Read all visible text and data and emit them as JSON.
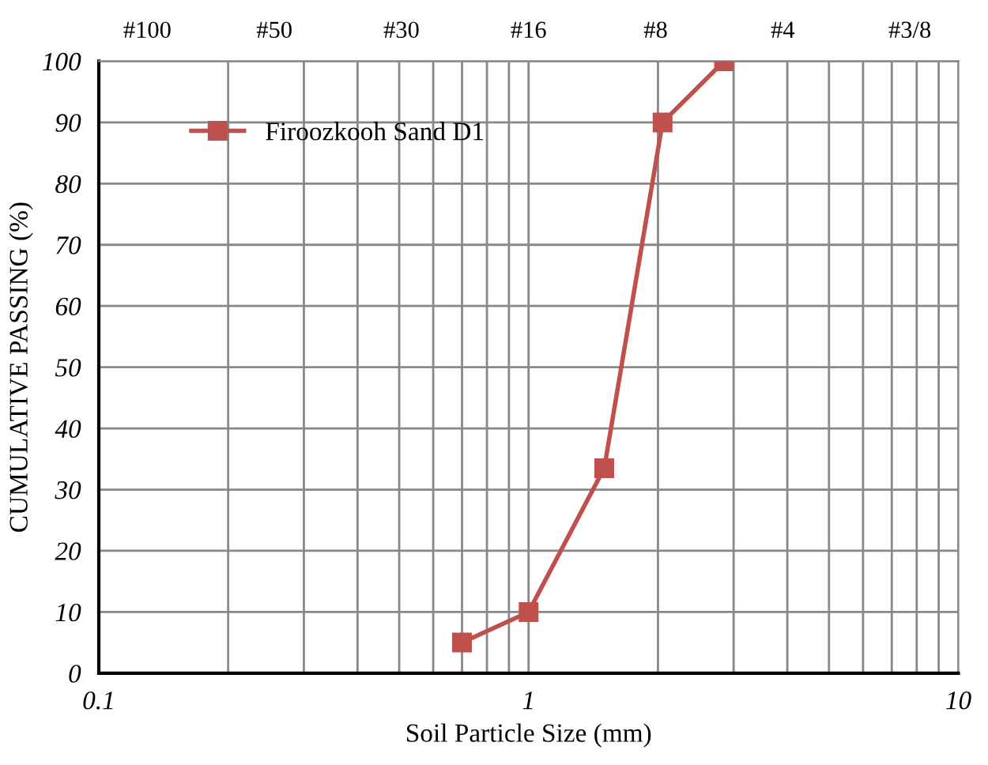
{
  "chart_data": {
    "type": "line",
    "xlabel": "Soil Particle Size (mm)",
    "ylabel": "CUMULATIVE PASSING (%)",
    "log": "x",
    "x": [
      0.7,
      1.0,
      1.5,
      2.05,
      2.85
    ],
    "series": [
      {
        "name": "Firoozkooh Sand D1",
        "color": "#c0504d",
        "values": [
          5,
          10,
          33.5,
          90,
          100
        ]
      }
    ],
    "xlim": [
      0.1,
      10
    ],
    "xticks": [
      0.1,
      {
        "value": 0.2,
        "label": null
      },
      {
        "value": 0.3,
        "label": null
      },
      {
        "value": 0.4,
        "label": null
      },
      {
        "value": 0.5,
        "label": null
      },
      {
        "value": 0.6,
        "label": null
      },
      {
        "value": 0.7,
        "label": null
      },
      {
        "value": 0.8,
        "label": null
      },
      {
        "value": 0.9,
        "label": null
      },
      1,
      {
        "value": 2,
        "label": null
      },
      {
        "value": 3,
        "label": null
      },
      {
        "value": 4,
        "label": null
      },
      {
        "value": 5,
        "label": null
      },
      {
        "value": 6,
        "label": null
      },
      {
        "value": 7,
        "label": null
      },
      {
        "value": 8,
        "label": null
      },
      {
        "value": 9,
        "label": null
      },
      10
    ],
    "annotations": [
      "#100",
      "#50",
      "#30",
      "#16",
      "#8",
      "#4",
      "#3/8"
    ],
    "ylim": [
      0,
      100
    ],
    "yticks": [
      0,
      10,
      20,
      30,
      40,
      50,
      60,
      70,
      80,
      90,
      100
    ],
    "grid": true,
    "legend": "top left",
    "marker": "square",
    "line_style": "solid"
  }
}
